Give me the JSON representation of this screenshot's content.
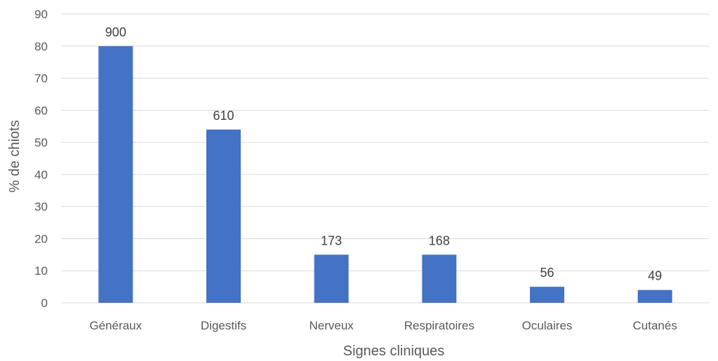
{
  "chart_data": {
    "type": "bar",
    "title": "",
    "xlabel": "Signes cliniques",
    "ylabel": "% de chiots",
    "categories": [
      "Généraux",
      "Digestifs",
      "Nerveux",
      "Respiratoires",
      "Oculaires",
      "Cutanés"
    ],
    "values": [
      80,
      54,
      15,
      15,
      5,
      4
    ],
    "data_labels": [
      "900",
      "610",
      "173",
      "168",
      "56",
      "49"
    ],
    "ylim": [
      0,
      90
    ],
    "yticks": [
      "0",
      "10",
      "20",
      "30",
      "40",
      "50",
      "60",
      "70",
      "80",
      "90"
    ],
    "grid": true,
    "legend": "none",
    "bar_color": "#4472c4",
    "grid_color": "#d9d9d9"
  }
}
